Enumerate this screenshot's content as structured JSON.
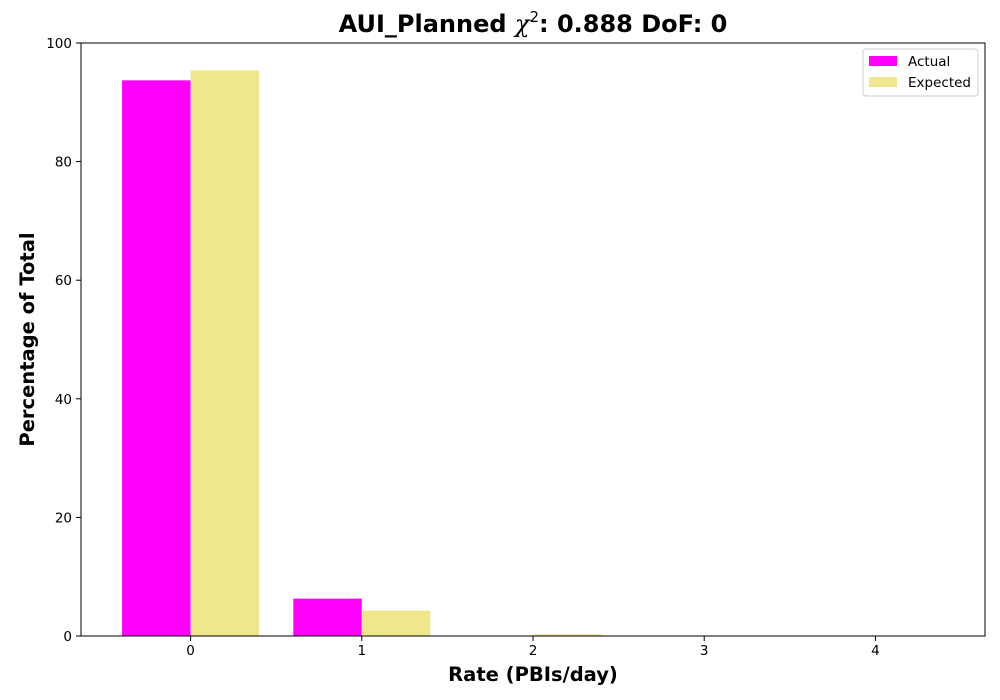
{
  "chart_data": {
    "type": "bar",
    "title_prefix": "AUI_Planned ",
    "title_chi": "χ",
    "title_chi_sup": "2",
    "title_suffix": ": 0.888 DoF: 0",
    "xlabel": "Rate (PBIs/day)",
    "ylabel": "Percentage of Total",
    "categories": [
      "0",
      "1",
      "2",
      "3",
      "4"
    ],
    "x": [
      0,
      1,
      2,
      3,
      4
    ],
    "xlim": [
      -0.64,
      4.64
    ],
    "ylim": [
      0,
      100
    ],
    "yticks": [
      0,
      20,
      40,
      60,
      80,
      100
    ],
    "series": [
      {
        "name": "Actual",
        "color": "#ff00ff",
        "values": [
          93.7,
          6.3,
          0,
          0,
          0
        ]
      },
      {
        "name": "Expected",
        "color": "#f0e68c",
        "values": [
          95.4,
          4.3,
          0.3,
          0,
          0
        ]
      }
    ],
    "legend_position": "top-right",
    "grid": false
  }
}
